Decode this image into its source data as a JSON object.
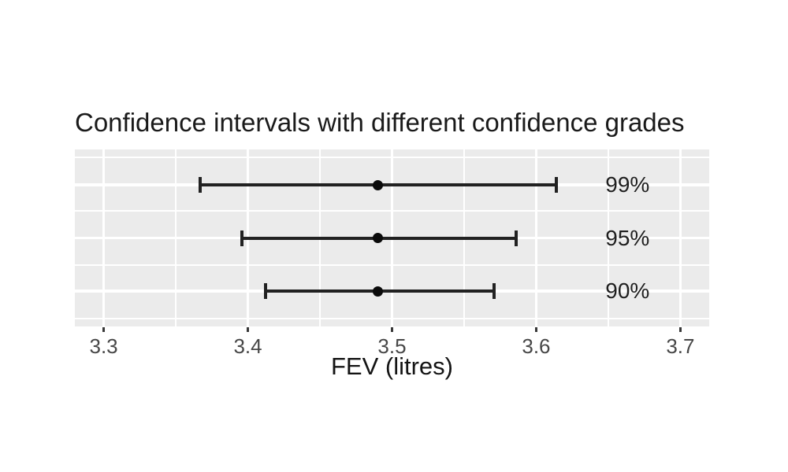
{
  "chart": {
    "panel_bg": "#ebebeb",
    "grid_color": "#ffffff",
    "bar_color": "#212121",
    "point_color": "#0a0a0a",
    "title_color": "#1a1a1a",
    "tick_text_color": "#474747"
  },
  "chart_data": {
    "type": "errorbar",
    "title": "Confidence intervals with different confidence grades",
    "xlabel": "FEV (litres)",
    "ylabel": "",
    "xlim": [
      3.28,
      3.72
    ],
    "x_ticks": [
      3.3,
      3.4,
      3.5,
      3.6,
      3.7
    ],
    "x_minor_ticks": [
      3.35,
      3.45,
      3.55,
      3.65
    ],
    "grid": "on",
    "legend": "none",
    "label_x": 3.648,
    "row_fractions": [
      0.2,
      0.5,
      0.8
    ],
    "h_minor_fractions": [
      0.045,
      0.348,
      0.652,
      0.955
    ],
    "series": [
      {
        "label": "99%",
        "mean": 3.49,
        "lower": 3.367,
        "upper": 3.614
      },
      {
        "label": "95%",
        "mean": 3.49,
        "lower": 3.396,
        "upper": 3.586
      },
      {
        "label": "90%",
        "mean": 3.49,
        "lower": 3.412,
        "upper": 3.571
      }
    ]
  }
}
